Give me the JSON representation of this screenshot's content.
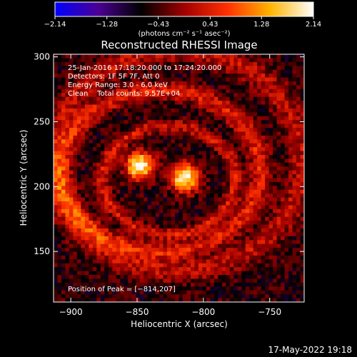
{
  "chart_data": {
    "type": "heatmap",
    "title": "Reconstructed RHESSI Image",
    "xlabel": "Heliocentric X (arcsec)",
    "ylabel": "Heliocentric Y (arcsec)",
    "xlim": [
      -913,
      -724
    ],
    "ylim": [
      111,
      302
    ],
    "x_ticks": [
      -900,
      -850,
      -800,
      -750
    ],
    "y_ticks": [
      150,
      200,
      250,
      300
    ],
    "colorbar": {
      "min": -2.14,
      "max": 2.14,
      "tick_values": [
        -2.14,
        -1.28,
        -0.43,
        0.43,
        1.28,
        2.14
      ],
      "tick_labels": [
        "−2.14",
        "−1.28",
        "−0.43",
        "0.43",
        "1.28",
        "2.14"
      ],
      "units_label": "(photons cm⁻² s⁻¹ asec⁻²)",
      "colors": [
        "#0000ff",
        "#4b0094",
        "#000000",
        "#a00000",
        "#ff3000",
        "#ffb400",
        "#ffffff"
      ]
    },
    "annotations": [
      "25-Jan-2016 17:18:20.000 to 17:24:20.000",
      "Detectors: 1F 5F 7F, Att 0",
      "Energy Range: 3.0 - 6.0 keV",
      "Clean    Total counts: 9.57E+04"
    ],
    "peak_label": "Position of Peak = [−814,207]",
    "peak_position": [
      -814,
      207
    ],
    "sources": [
      {
        "x": -848,
        "y": 216,
        "peak": 2.14
      },
      {
        "x": -814,
        "y": 207,
        "peak": 2.14
      }
    ],
    "ring_features": [
      {
        "cx": -832,
        "cy": 212,
        "ax": 75,
        "ay": 62,
        "level": 1.0
      },
      {
        "cx": -826,
        "cy": 205,
        "ax": 50,
        "ay": 42,
        "level": 0.9
      },
      {
        "cx": -820,
        "cy": 220,
        "ax": 95,
        "ay": 85,
        "level": 0.75
      }
    ]
  },
  "footer": {
    "timestamp": "17-May-2022 19:18"
  }
}
